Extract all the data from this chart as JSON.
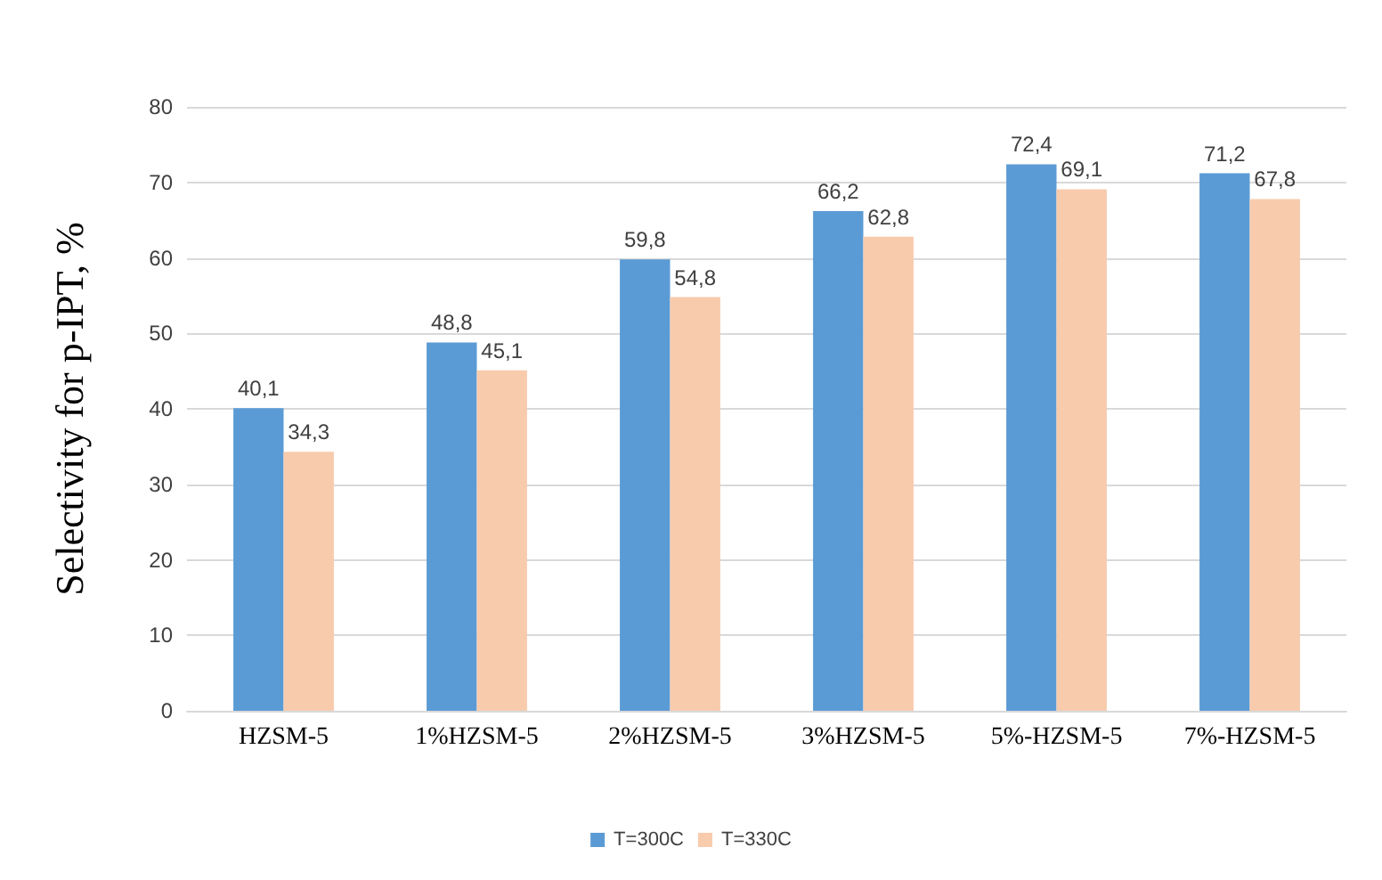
{
  "chart_data": {
    "type": "bar",
    "ylabel": "Selectivity for p-IPT, %",
    "categories": [
      "HZSM-5",
      "1%HZSM-5",
      "2%HZSM-5",
      "3%HZSM-5",
      "5%-HZSM-5",
      "7%-HZSM-5"
    ],
    "series": [
      {
        "name": "T=300C",
        "color": "#5b9bd5",
        "values": [
          40.1,
          48.8,
          59.8,
          66.2,
          72.4,
          71.2
        ],
        "value_labels": [
          "40,1",
          "48,8",
          "59,8",
          "66,2",
          "72,4",
          "71,2"
        ]
      },
      {
        "name": "T=330C",
        "color": "#f8cbad",
        "values": [
          34.3,
          45.1,
          54.8,
          62.8,
          69.1,
          67.8
        ],
        "value_labels": [
          "34,3",
          "45,1",
          "54,8",
          "62,8",
          "69,1",
          "67,8"
        ]
      }
    ],
    "ylim": [
      0,
      80
    ],
    "yticks": [
      0,
      10,
      20,
      30,
      40,
      50,
      60,
      70,
      80
    ],
    "grid": "y",
    "legend": "bottom"
  }
}
